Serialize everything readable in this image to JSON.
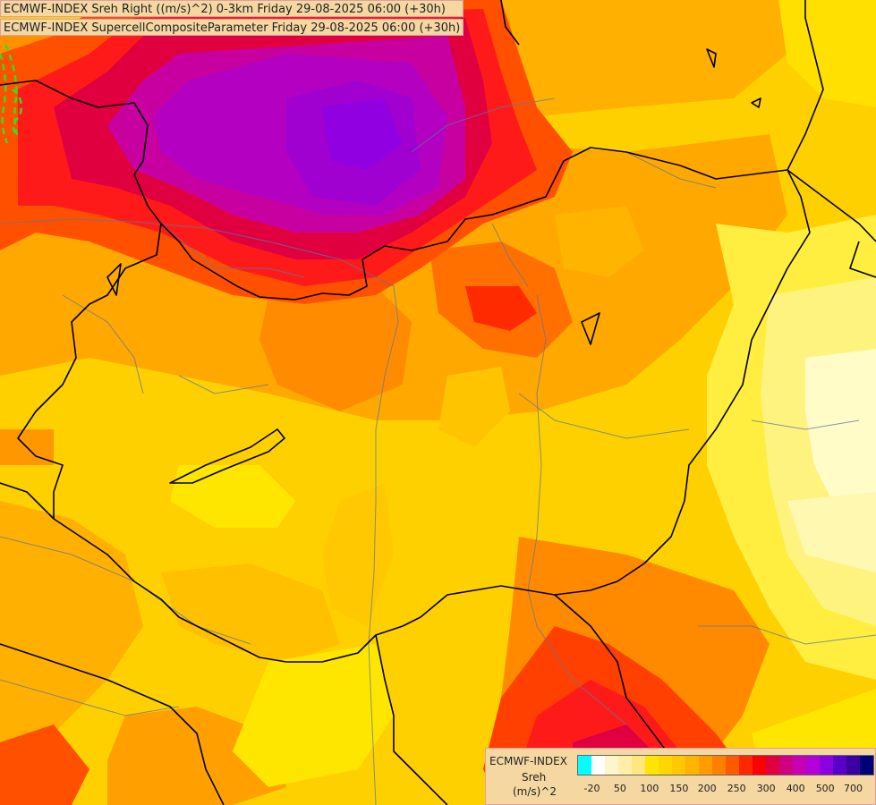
{
  "header": {
    "line1": "ECMWF-INDEX Sreh Right ((m/s)^2) 0-3km Friday 29-08-2025 06:00 (+30h)",
    "line2": "ECMWF-INDEX SupercellCompositeParameter Friday 29-08-2025 06:00 (+30h)"
  },
  "legend": {
    "title": "ECMWF-INDEX",
    "variable": "Sreh",
    "unit": "(m/s)^2",
    "colors": [
      "#00ffff",
      "#ffffff",
      "#fff5cc",
      "#ffeeaa",
      "#ffe680",
      "#ffe600",
      "#ffd600",
      "#ffc800",
      "#ffb400",
      "#ff9c00",
      "#ff8000",
      "#ff5a00",
      "#ff2800",
      "#ff0000",
      "#e00040",
      "#d00080",
      "#c800b4",
      "#b400d8",
      "#8c00e0",
      "#5a00c8",
      "#3c00a0",
      "#000078"
    ],
    "ticks": [
      {
        "label": "-20",
        "pos": 0.05
      },
      {
        "label": "50",
        "pos": 0.145
      },
      {
        "label": "100",
        "pos": 0.245
      },
      {
        "label": "150",
        "pos": 0.345
      },
      {
        "label": "200",
        "pos": 0.44
      },
      {
        "label": "250",
        "pos": 0.54
      },
      {
        "label": "300",
        "pos": 0.64
      },
      {
        "label": "400",
        "pos": 0.74
      },
      {
        "label": "500",
        "pos": 0.84
      },
      {
        "label": "700",
        "pos": 0.935
      }
    ]
  },
  "map": {
    "regions": [
      {
        "name": "high-helicity-core-north",
        "color": "#c000b0"
      },
      {
        "name": "helicity-max-purple",
        "color": "#a000e0"
      },
      {
        "name": "red-band-north",
        "color": "#ff1a1a"
      },
      {
        "name": "red-band-south",
        "color": "#ff2a00"
      },
      {
        "name": "orange-field",
        "color": "#ffa000"
      },
      {
        "name": "pale-yellow-east",
        "color": "#ffffc0"
      }
    ]
  }
}
